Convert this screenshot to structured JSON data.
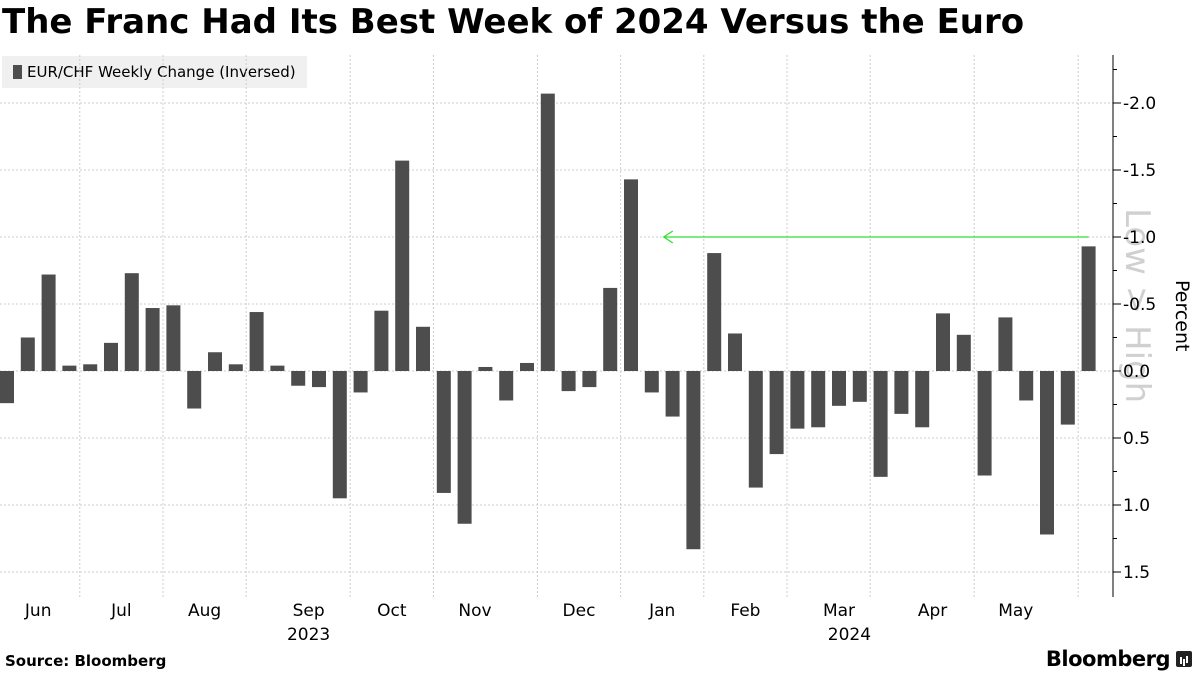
{
  "title": "The Franc Had Its Best Week of 2024 Versus the Euro",
  "legend_label": "EUR/CHF Weekly Change (Inversed)",
  "source": "Source: Bloomberg",
  "brand": "Bloomberg",
  "colors": {
    "bar": "#4d4d4d",
    "arrow": "#33dd33",
    "grid": "#cccccc",
    "watermark": "#d0d0d0"
  },
  "chart_data": {
    "type": "bar",
    "title": "The Franc Had Its Best Week of 2024 Versus the Euro",
    "series_name": "EUR/CHF Weekly Change (Inversed)",
    "ylabel": "Percent",
    "y_axis_inverted": true,
    "ylim": [
      -2.3,
      1.7
    ],
    "y_ticks": [
      -2.0,
      -1.5,
      -1.0,
      -0.5,
      0.0,
      0.5,
      1.0,
      1.5
    ],
    "y_tick_labels": [
      "-2.0",
      "-1.5",
      "-1.0",
      "-0.5",
      "0.0",
      "0.5",
      "1.0",
      "1.5"
    ],
    "watermark_label": "Low > High",
    "months": [
      {
        "label": "Jun",
        "week": 1.5
      },
      {
        "label": "Jul",
        "week": 5.5
      },
      {
        "label": "Aug",
        "week": 9.5
      },
      {
        "label": "Sep",
        "week": 14.5
      },
      {
        "label": "Oct",
        "week": 18.5
      },
      {
        "label": "Nov",
        "week": 22.5
      },
      {
        "label": "Dec",
        "week": 27.5
      },
      {
        "label": "Jan",
        "week": 31.5
      },
      {
        "label": "Feb",
        "week": 35.5
      },
      {
        "label": "Mar",
        "week": 40
      },
      {
        "label": "Apr",
        "week": 44.5
      },
      {
        "label": "May",
        "week": 48.5
      }
    ],
    "years": [
      {
        "label": "2023",
        "week": 14.5
      },
      {
        "label": "2024",
        "week": 40.5
      }
    ],
    "month_gridlines": [
      4,
      8,
      12,
      17,
      21,
      26,
      30,
      34,
      38,
      42,
      47,
      52
    ],
    "values": [
      0.24,
      -0.25,
      -0.72,
      -0.04,
      -0.05,
      -0.21,
      -0.73,
      -0.47,
      -0.49,
      0.28,
      -0.14,
      -0.05,
      -0.44,
      -0.04,
      0.11,
      0.12,
      0.95,
      0.16,
      -0.45,
      -1.57,
      -0.33,
      0.91,
      1.14,
      -0.03,
      0.22,
      -0.06,
      -2.07,
      0.15,
      0.12,
      -0.62,
      -1.43,
      0.16,
      0.34,
      1.33,
      -0.88,
      -0.28,
      0.87,
      0.62,
      0.43,
      0.42,
      0.26,
      0.23,
      0.79,
      0.32,
      0.42,
      -0.43,
      -0.27,
      0.78,
      -0.4,
      0.22,
      1.22,
      0.4,
      -0.93
    ],
    "annotation": {
      "type": "arrow",
      "value": -1.0,
      "from_week": 52,
      "to_week": 31
    }
  }
}
